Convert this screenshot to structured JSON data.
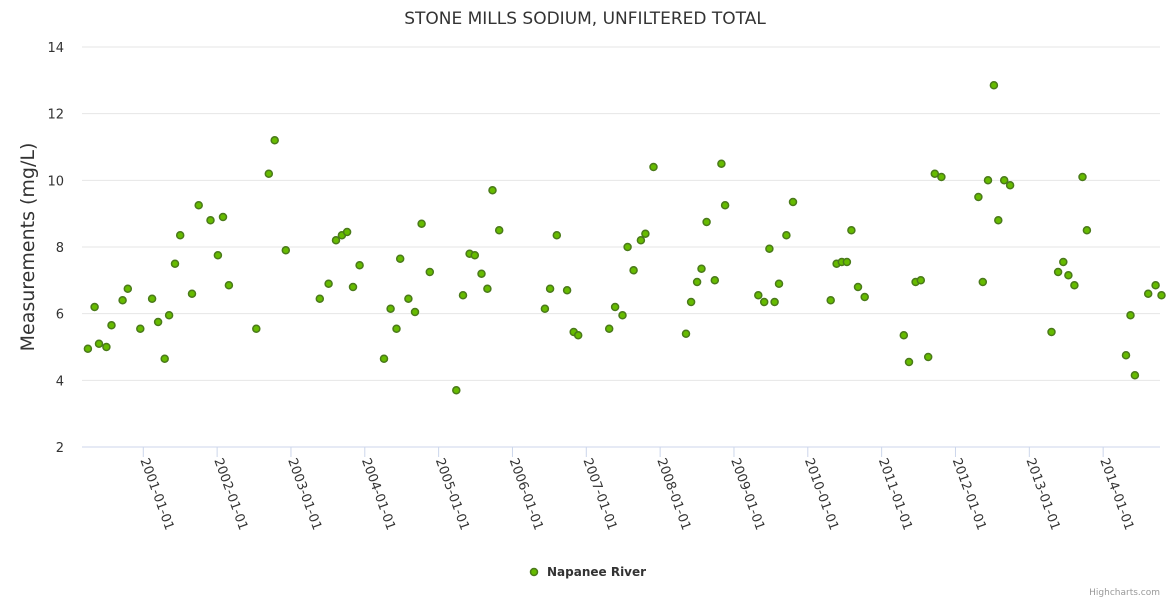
{
  "chart_data": {
    "type": "scatter",
    "title": "STONE MILLS SODIUM, UNFILTERED TOTAL",
    "xlabel": "",
    "ylabel": "Measurements (mg/L)",
    "ylim": [
      2,
      14
    ],
    "yticks": [
      2,
      4,
      6,
      8,
      10,
      12,
      14
    ],
    "xlim": [
      2000.17,
      2014.77
    ],
    "xticks": [
      "2001-01-01",
      "2002-01-01",
      "2003-01-01",
      "2004-01-01",
      "2005-01-01",
      "2006-01-01",
      "2007-01-01",
      "2008-01-01",
      "2009-01-01",
      "2010-01-01",
      "2011-01-01",
      "2012-01-01",
      "2013-01-01",
      "2014-01-01"
    ],
    "grid": true,
    "legend_position": "bottom-center",
    "series": [
      {
        "name": "Napanee River",
        "fill_color": "#66bb00",
        "stroke_color": "#4a7a1a",
        "points": [
          [
            2000.25,
            4.95
          ],
          [
            2000.34,
            6.2
          ],
          [
            2000.4,
            5.1
          ],
          [
            2000.5,
            5.0
          ],
          [
            2000.57,
            5.65
          ],
          [
            2000.72,
            6.4
          ],
          [
            2000.79,
            6.75
          ],
          [
            2000.96,
            5.55
          ],
          [
            2001.12,
            6.45
          ],
          [
            2001.2,
            5.75
          ],
          [
            2001.29,
            4.65
          ],
          [
            2001.35,
            5.95
          ],
          [
            2001.43,
            7.5
          ],
          [
            2001.5,
            8.35
          ],
          [
            2001.66,
            6.6
          ],
          [
            2001.75,
            9.25
          ],
          [
            2001.91,
            8.8
          ],
          [
            2002.01,
            7.75
          ],
          [
            2002.08,
            8.9
          ],
          [
            2002.16,
            6.85
          ],
          [
            2002.53,
            5.55
          ],
          [
            2002.7,
            10.2
          ],
          [
            2002.78,
            11.2
          ],
          [
            2002.93,
            7.9
          ],
          [
            2003.39,
            6.45
          ],
          [
            2003.51,
            6.9
          ],
          [
            2003.61,
            8.2
          ],
          [
            2003.69,
            8.35
          ],
          [
            2003.76,
            8.45
          ],
          [
            2003.84,
            6.8
          ],
          [
            2003.93,
            7.45
          ],
          [
            2004.26,
            4.65
          ],
          [
            2004.35,
            6.15
          ],
          [
            2004.43,
            5.55
          ],
          [
            2004.48,
            7.65
          ],
          [
            2004.59,
            6.45
          ],
          [
            2004.68,
            6.05
          ],
          [
            2004.77,
            8.7
          ],
          [
            2004.88,
            7.25
          ],
          [
            2005.24,
            3.7
          ],
          [
            2005.33,
            6.55
          ],
          [
            2005.42,
            7.8
          ],
          [
            2005.49,
            7.75
          ],
          [
            2005.58,
            7.2
          ],
          [
            2005.66,
            6.75
          ],
          [
            2005.73,
            9.7
          ],
          [
            2005.82,
            8.5
          ],
          [
            2006.44,
            6.15
          ],
          [
            2006.51,
            6.75
          ],
          [
            2006.6,
            8.35
          ],
          [
            2006.74,
            6.7
          ],
          [
            2006.83,
            5.45
          ],
          [
            2006.89,
            5.35
          ],
          [
            2007.31,
            5.55
          ],
          [
            2007.39,
            6.2
          ],
          [
            2007.49,
            5.95
          ],
          [
            2007.56,
            8.0
          ],
          [
            2007.64,
            7.3
          ],
          [
            2007.74,
            8.2
          ],
          [
            2007.8,
            8.4
          ],
          [
            2007.91,
            10.4
          ],
          [
            2008.35,
            5.4
          ],
          [
            2008.42,
            6.35
          ],
          [
            2008.5,
            6.95
          ],
          [
            2008.56,
            7.35
          ],
          [
            2008.63,
            8.75
          ],
          [
            2008.74,
            7.0
          ],
          [
            2008.83,
            10.5
          ],
          [
            2008.88,
            9.25
          ],
          [
            2009.33,
            6.55
          ],
          [
            2009.41,
            6.35
          ],
          [
            2009.48,
            7.95
          ],
          [
            2009.55,
            6.35
          ],
          [
            2009.61,
            6.9
          ],
          [
            2009.71,
            8.35
          ],
          [
            2009.8,
            9.35
          ],
          [
            2010.31,
            6.4
          ],
          [
            2010.39,
            7.5
          ],
          [
            2010.46,
            7.55
          ],
          [
            2010.53,
            7.55
          ],
          [
            2010.59,
            8.5
          ],
          [
            2010.68,
            6.8
          ],
          [
            2010.77,
            6.5
          ],
          [
            2011.3,
            5.35
          ],
          [
            2011.37,
            4.55
          ],
          [
            2011.46,
            6.95
          ],
          [
            2011.53,
            7.0
          ],
          [
            2011.63,
            4.7
          ],
          [
            2011.72,
            10.2
          ],
          [
            2011.81,
            10.1
          ],
          [
            2012.31,
            9.5
          ],
          [
            2012.37,
            6.95
          ],
          [
            2012.44,
            10.0
          ],
          [
            2012.52,
            12.85
          ],
          [
            2012.58,
            8.8
          ],
          [
            2012.66,
            10.0
          ],
          [
            2012.74,
            9.85
          ],
          [
            2013.3,
            5.45
          ],
          [
            2013.39,
            7.25
          ],
          [
            2013.46,
            7.55
          ],
          [
            2013.53,
            7.15
          ],
          [
            2013.61,
            6.85
          ],
          [
            2013.72,
            10.1
          ],
          [
            2013.78,
            8.5
          ],
          [
            2014.31,
            4.75
          ],
          [
            2014.37,
            5.95
          ],
          [
            2014.43,
            4.15
          ],
          [
            2014.61,
            6.6
          ],
          [
            2014.71,
            6.85
          ],
          [
            2014.79,
            6.55
          ]
        ]
      }
    ]
  },
  "credits": "Highcharts.com"
}
